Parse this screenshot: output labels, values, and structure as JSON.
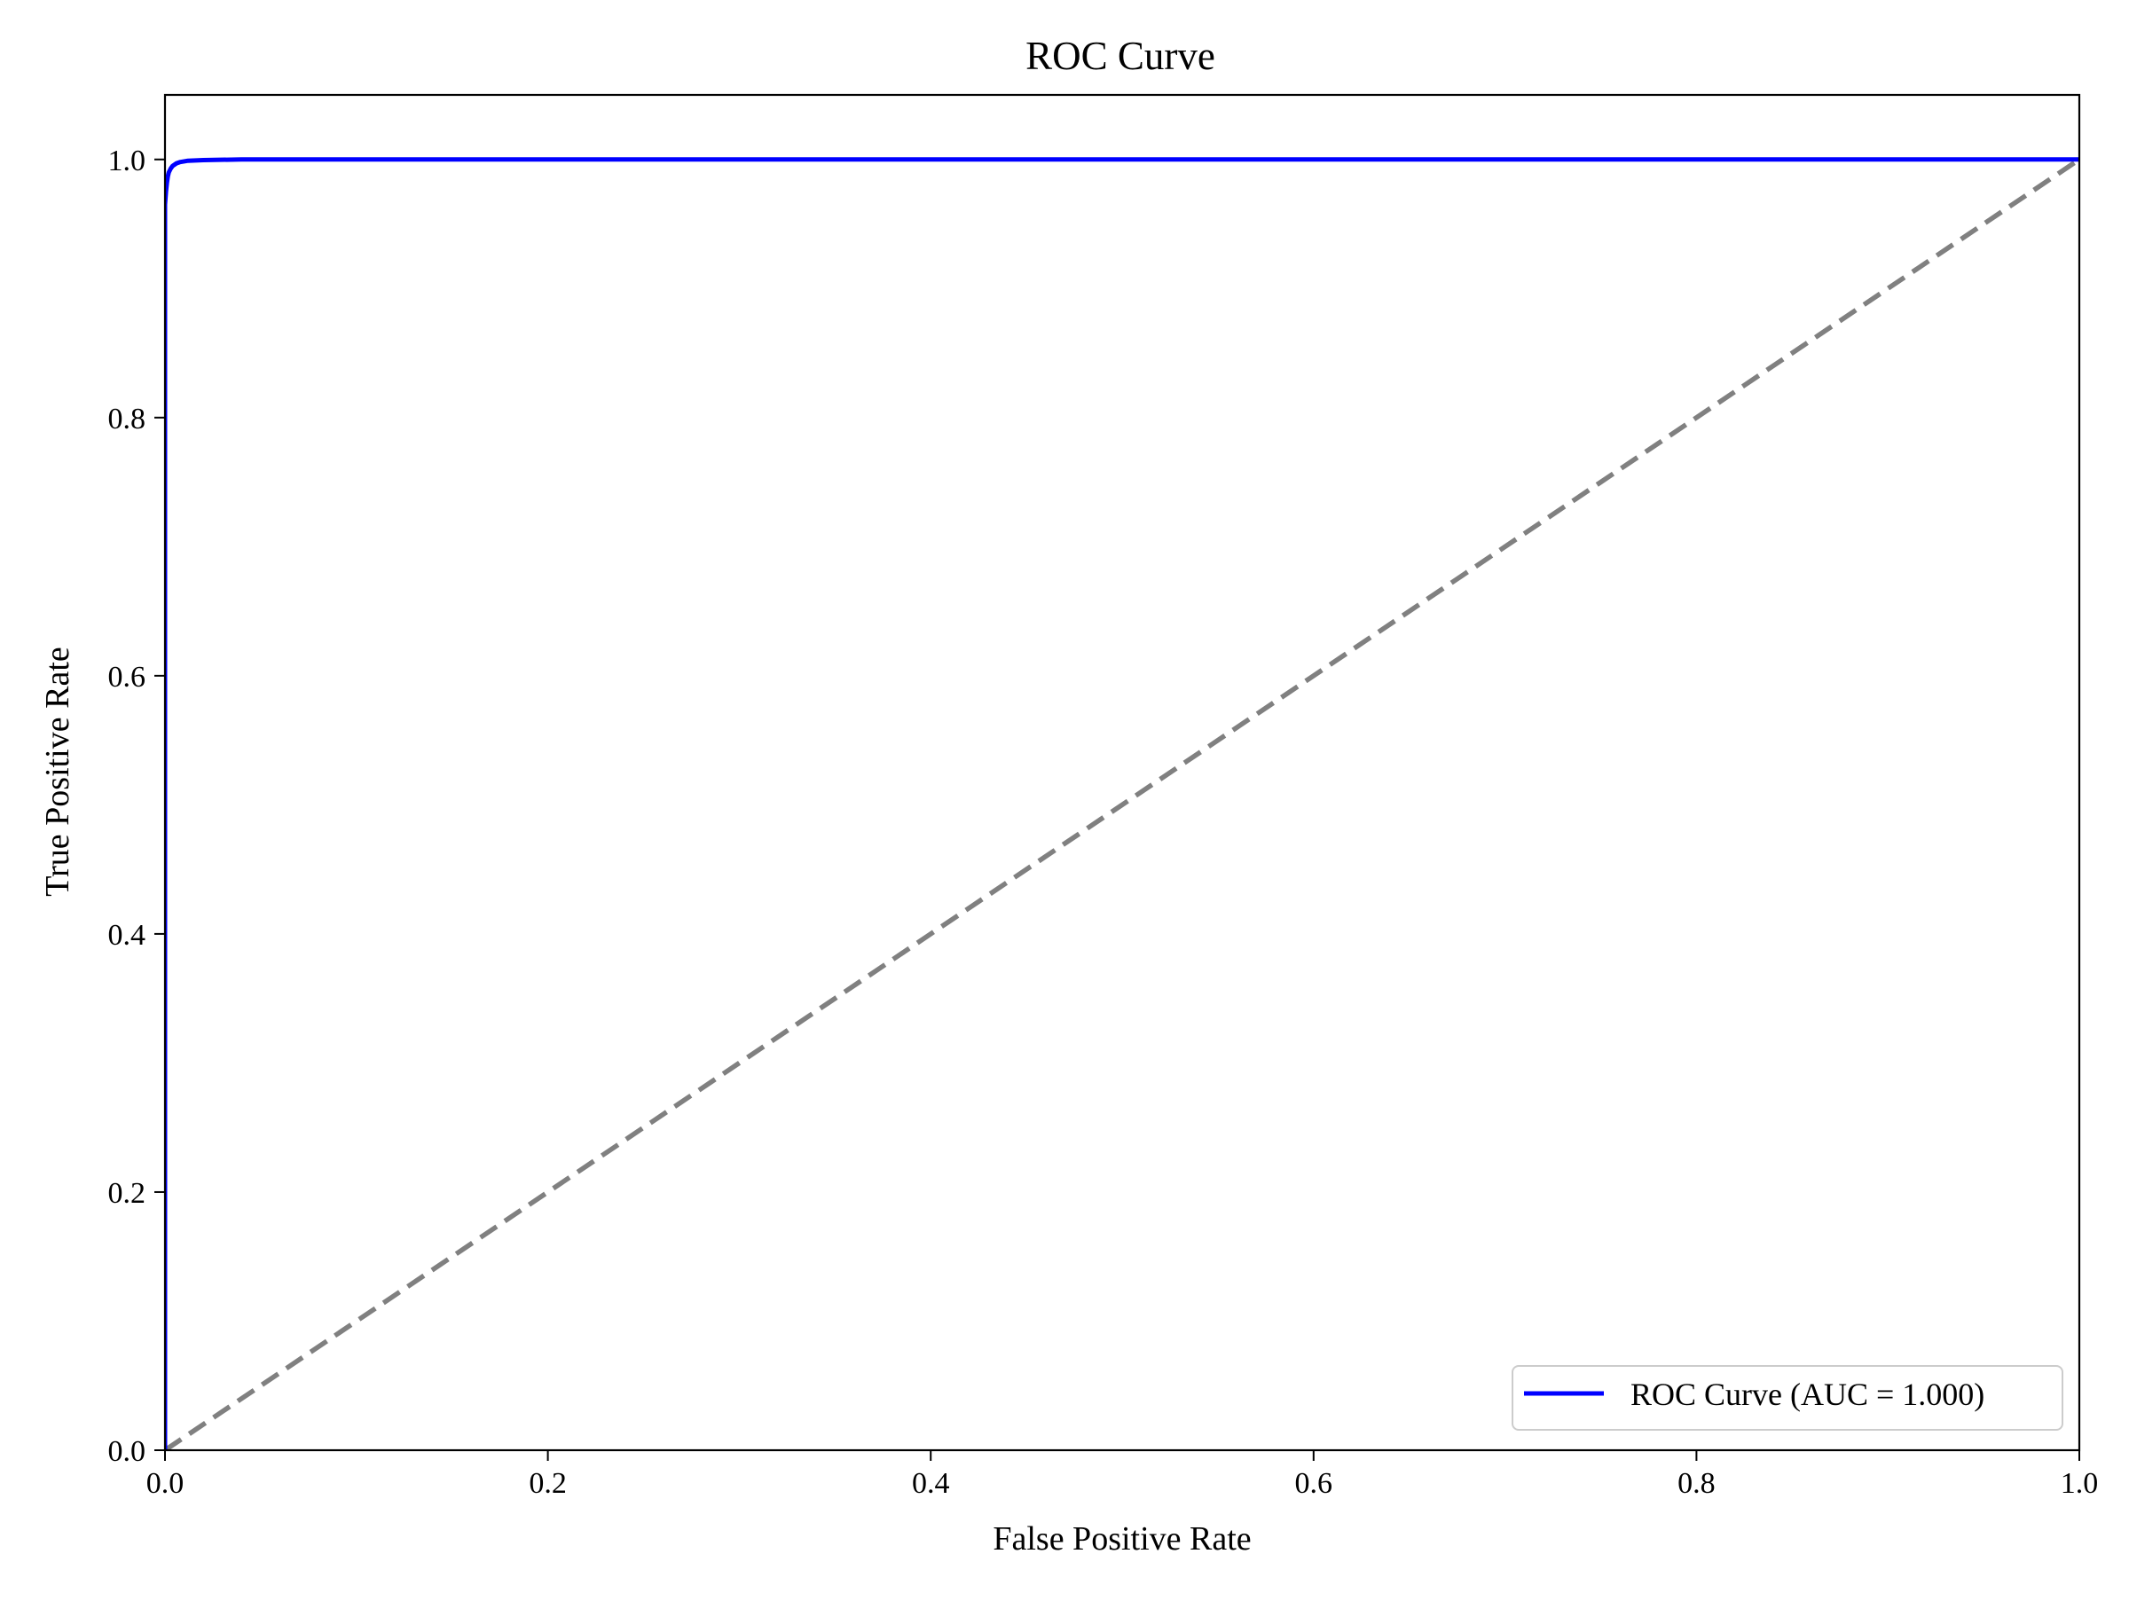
{
  "chart_data": {
    "type": "line",
    "title": "ROC Curve",
    "xlabel": "False Positive Rate",
    "ylabel": "True Positive Rate",
    "xlim": [
      0.0,
      1.0
    ],
    "ylim": [
      0.0,
      1.05
    ],
    "x_ticks": [
      "0.0",
      "0.2",
      "0.4",
      "0.6",
      "0.8",
      "1.0"
    ],
    "y_ticks": [
      "0.0",
      "0.2",
      "0.4",
      "0.6",
      "0.8",
      "1.0"
    ],
    "grid": false,
    "legend_position": "lower-right",
    "series": [
      {
        "name": "ROC Curve (AUC = 1.000)",
        "color": "#0000ff",
        "style": "solid",
        "x": [
          0.0,
          0.0,
          0.0005,
          0.001,
          0.0015,
          0.002,
          0.003,
          0.004,
          0.006,
          0.008,
          0.012,
          0.02,
          0.04,
          0.1,
          0.3,
          0.6,
          1.0
        ],
        "y": [
          0.0,
          0.965,
          0.975,
          0.982,
          0.987,
          0.99,
          0.993,
          0.995,
          0.997,
          0.998,
          0.999,
          0.9995,
          1.0,
          1.0,
          1.0,
          1.0,
          1.0
        ]
      },
      {
        "name": "",
        "color": "#808080",
        "style": "dashed",
        "x": [
          0.0,
          1.0
        ],
        "y": [
          0.0,
          1.0
        ]
      }
    ]
  }
}
